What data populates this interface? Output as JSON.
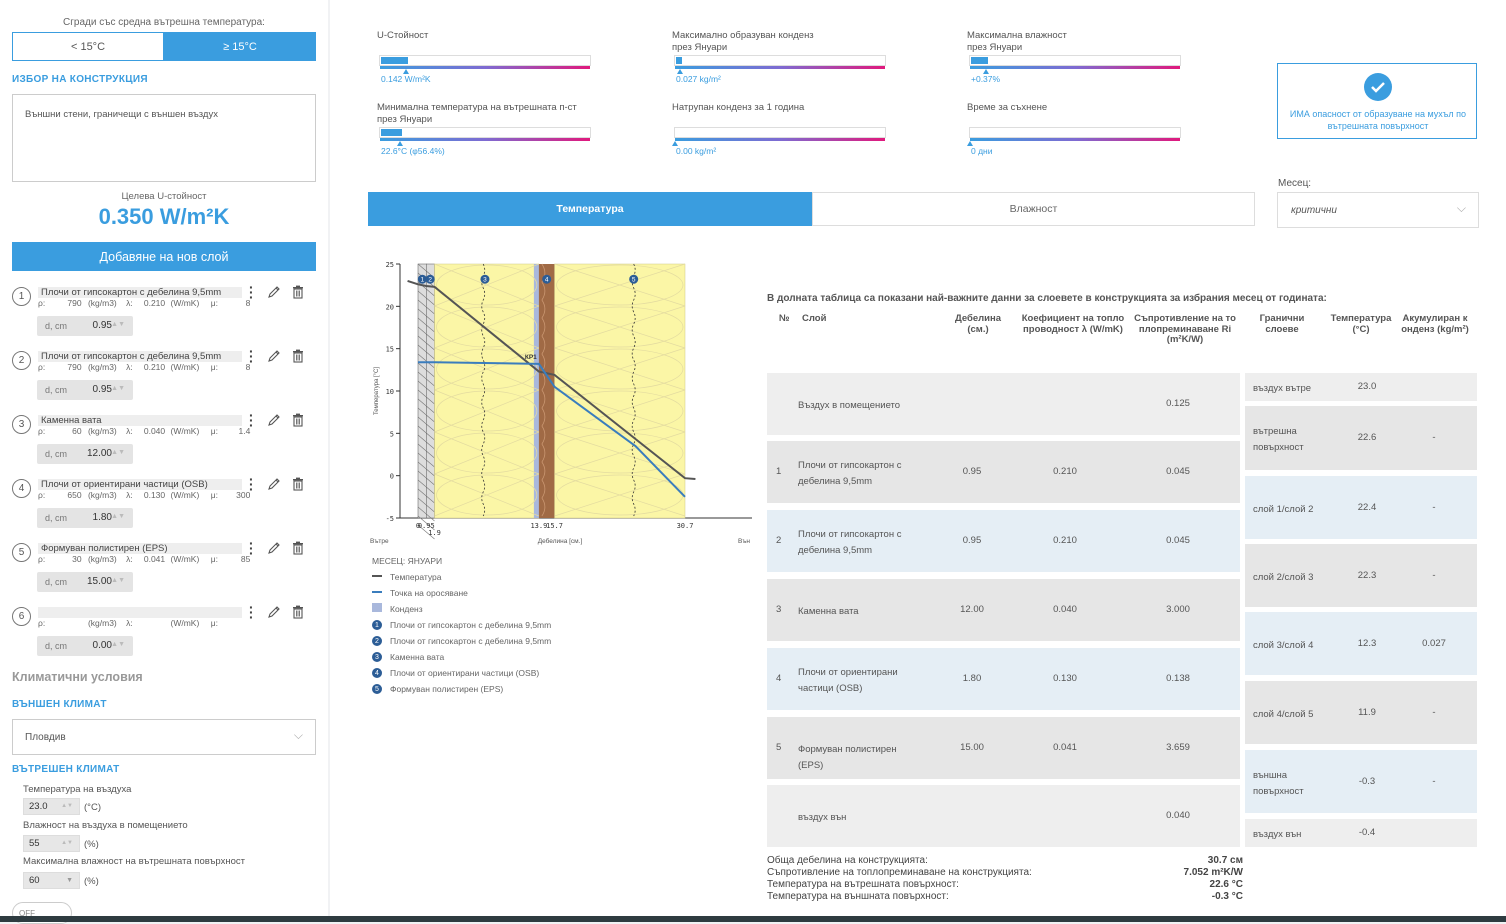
{
  "sidebar": {
    "temp_question": "Сгради със средна вътрешна температура:",
    "temp_options": [
      "< 15°C",
      "≥ 15°C"
    ],
    "construction_heading": "ИЗБОР НА КОНСТРУКЦИЯ",
    "construction_value": "Външни стени, граничещи с външен въздух",
    "target_label": "Целева U-стойност",
    "target_value": "0.350 W/m²K",
    "add_layer_label": "Добавяне на нов слой",
    "layers": [
      {
        "num": "1",
        "name": "Плочи от гипсокартон с дебелина 9,5mm",
        "rho": "790",
        "lambda": "0.210",
        "mu": "8",
        "d_label": "d, cm",
        "d": "0.95"
      },
      {
        "num": "2",
        "name": "Плочи от гипсокартон с дебелина 9,5mm",
        "rho": "790",
        "lambda": "0.210",
        "mu": "8",
        "d_label": "d, cm",
        "d": "0.95"
      },
      {
        "num": "3",
        "name": "Каменна вата",
        "rho": "60",
        "lambda": "0.040",
        "mu": "1.4",
        "d_label": "d, cm",
        "d": "12.00"
      },
      {
        "num": "4",
        "name": "Плочи от ориентирани частици (OSB)",
        "rho": "650",
        "lambda": "0.130",
        "mu": "300",
        "d_label": "d, cm",
        "d": "1.80"
      },
      {
        "num": "5",
        "name": "Формуван полистирен (EPS)",
        "rho": "30",
        "lambda": "0.041",
        "mu": "85",
        "d_label": "d, cm",
        "d": "15.00"
      },
      {
        "num": "6",
        "name": "",
        "rho": "",
        "lambda": "",
        "mu": "",
        "d_label": "d, cm",
        "d": "0.00"
      }
    ],
    "units": {
      "rho_prefix": "ρ:",
      "rho_unit": "(kg/m3)",
      "lambda_prefix": "λ:",
      "lambda_unit": "(W/mK)",
      "mu_prefix": "μ:"
    },
    "climate_heading": "Климатични условия",
    "ext_climate_heading": "ВЪНШЕН КЛИМАТ",
    "ext_climate_value": "Пловдив",
    "int_climate_heading": "ВЪТРЕШЕН КЛИМАТ",
    "air_temp_label": "Температура на въздуха",
    "air_temp_value": "23.0",
    "air_temp_unit": "(°C)",
    "humidity_label": "Влажност на въздуха в помещението",
    "humidity_value": "55",
    "humidity_unit": "(%)",
    "max_humidity_label": "Максимална влажност на вътрешната повърхност",
    "max_humidity_value": "60",
    "max_humidity_unit": "(%)",
    "toggle_label": "OFF"
  },
  "metrics": [
    {
      "label_lines": [
        "U-Стойност"
      ],
      "value": "0.142 W/m²K",
      "fill": 0.13
    },
    {
      "label_lines": [
        "Максимално образуван конденз",
        "през Януари"
      ],
      "value": "0.027 kg/m²",
      "fill": 0.03
    },
    {
      "label_lines": [
        "Максимална влажност",
        "през Януари"
      ],
      "value": "+0.37%",
      "fill": 0.08
    },
    {
      "label_lines": [
        "Минимална температура на вътрешната п-ст",
        "през Януари"
      ],
      "value": "22.6°C (φ56.4%)",
      "fill": 0.1
    },
    {
      "label_lines": [
        "Натрупан конденз за 1 година"
      ],
      "value": "0.00 kg/m²",
      "fill": 0
    },
    {
      "label_lines": [
        "Време за съхнене"
      ],
      "value": "0 дни",
      "fill": 0
    }
  ],
  "mold_warning": "ИМА опасност от образуване на мухъл по вътрешната повърхност",
  "tabs": [
    "Температура",
    "Влажност"
  ],
  "month": {
    "label": "Месец:",
    "value": "критични"
  },
  "chart": {
    "ylabel": "Температура [°C]",
    "xlabel": "Дебелина [см.]",
    "inside_label": "Вътре",
    "outside_label": "Вън",
    "yticks": [
      "25",
      "20",
      "15",
      "10",
      "5",
      "0",
      "-5"
    ],
    "xticks": [
      "0",
      "0.95",
      "1.9",
      "13.9",
      "15.7",
      "30.7"
    ],
    "kp_label": "КР1",
    "layer_markers": [
      "1",
      "2",
      "3",
      "4",
      "5"
    ],
    "legend_month": "МЕСЕЦ: ЯНУАРИ",
    "legend": [
      {
        "label": "Температура",
        "color": "#555555"
      },
      {
        "label": "Точка на оросяване",
        "color": "#3a7dbd"
      },
      {
        "label": "Конденз",
        "color": "#a9b8dc"
      }
    ],
    "legend_layers": [
      {
        "num": "1",
        "label": "Плочи от гипсокартон с дебелина 9,5mm"
      },
      {
        "num": "2",
        "label": "Плочи от гипсокартон с дебелина 9,5mm"
      },
      {
        "num": "3",
        "label": "Каменна вата"
      },
      {
        "num": "4",
        "label": "Плочи от ориентирани частици (OSB)"
      },
      {
        "num": "5",
        "label": "Формуван полистирен (EPS)"
      }
    ]
  },
  "table": {
    "intro": "В долната таблица са показани най-важните данни за слоевете в конструкцията за избрания месец от годината:",
    "headers": {
      "num": "№",
      "layer": "Слой",
      "thickness": "Дебелина (см.)",
      "lambda": "Коефициент на топло проводност λ (W/mK)",
      "resistance": "Съпротивление на то плопреминаване Ri (m²K/W)",
      "boundaries": "Гранични слоеве",
      "temperature": "Температура (°C)",
      "condensate": "Акумулиран к онденз (kg/m²)"
    },
    "rows": [
      {
        "num": "",
        "name": "Въздух в помещението",
        "d": "",
        "lambda": "",
        "r": "0.125"
      },
      {
        "num": "1",
        "name": "Плочи от гипсокартон с дебелина 9,5mm",
        "d": "0.95",
        "lambda": "0.210",
        "r": "0.045"
      },
      {
        "num": "2",
        "name": "Плочи от гипсокартон с дебелина 9,5mm",
        "d": "0.95",
        "lambda": "0.210",
        "r": "0.045"
      },
      {
        "num": "3",
        "name": "Каменна вата",
        "d": "12.00",
        "lambda": "0.040",
        "r": "3.000"
      },
      {
        "num": "4",
        "name": "Плочи от ориентирани частици (OSB)",
        "d": "1.80",
        "lambda": "0.130",
        "r": "0.138"
      },
      {
        "num": "5",
        "name": "Формуван полистирен (EPS)",
        "d": "15.00",
        "lambda": "0.041",
        "r": "3.659"
      },
      {
        "num": "",
        "name": "въздух вън",
        "d": "",
        "lambda": "",
        "r": "0.040"
      }
    ],
    "boundaries": [
      {
        "name": "въздух вътре",
        "temp": "23.0",
        "cond": ""
      },
      {
        "name": "вътрешна повърхност",
        "temp": "22.6",
        "cond": "-"
      },
      {
        "name": "слой 1/слой 2",
        "temp": "22.4",
        "cond": "-"
      },
      {
        "name": "слой 2/слой 3",
        "temp": "22.3",
        "cond": "-"
      },
      {
        "name": "слой 3/слой 4",
        "temp": "12.3",
        "cond": "0.027"
      },
      {
        "name": "слой 4/слой 5",
        "temp": "11.9",
        "cond": "-"
      },
      {
        "name": "външна повърхност",
        "temp": "-0.3",
        "cond": "-"
      },
      {
        "name": "въздух вън",
        "temp": "-0.4",
        "cond": ""
      }
    ],
    "summary": [
      {
        "label": "Обща дебелина на конструкцията:",
        "value": "30.7 см"
      },
      {
        "label": "Съпротивление на топлопреминаване на конструкцията:",
        "value": "7.052 m²K/W"
      },
      {
        "label": "Температура на вътрешната повърхност:",
        "value": "22.6 °C"
      },
      {
        "label": "Температура на външната повърхност:",
        "value": "-0.3 °C"
      }
    ]
  }
}
